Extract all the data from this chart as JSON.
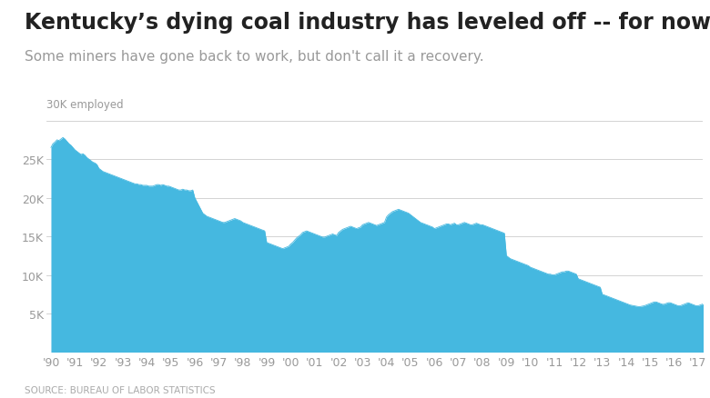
{
  "title": "Kentucky’s dying coal industry has leveled off -- for now",
  "subtitle": "Some miners have gone back to work, but don't call it a recovery.",
  "ylabel_text": "30K employed",
  "source": "SOURCE: BUREAU OF LABOR STATISTICS",
  "fill_color": "#45b8e0",
  "line_color": "#45b8e0",
  "background_color": "#ffffff",
  "grid_color": "#cccccc",
  "yticks": [
    5000,
    10000,
    15000,
    20000,
    25000
  ],
  "ytick_labels": [
    "5K",
    "10K",
    "15K",
    "20K",
    "25K"
  ],
  "ylim": [
    0,
    31000
  ],
  "title_fontsize": 17,
  "subtitle_fontsize": 11,
  "tick_fontsize": 9,
  "years": [
    "'90",
    "'91",
    "'92",
    "'93",
    "'94",
    "'95",
    "'96",
    "'97",
    "'98",
    "'99",
    "'00",
    "'01",
    "'02",
    "'03",
    "'04",
    "'05",
    "'06",
    "'07",
    "'08",
    "'09",
    "'10",
    "'11",
    "'12",
    "'13",
    "'14",
    "'15",
    "'16",
    "'17"
  ],
  "monthly_values": [
    26500,
    27000,
    27200,
    27500,
    27400,
    27600,
    27800,
    27600,
    27300,
    27000,
    26800,
    26500,
    26200,
    26000,
    25800,
    25600,
    25700,
    25500,
    25200,
    25000,
    24800,
    24600,
    24500,
    24300,
    23800,
    23600,
    23400,
    23300,
    23200,
    23100,
    23000,
    22900,
    22800,
    22700,
    22600,
    22500,
    22400,
    22300,
    22200,
    22100,
    22000,
    21900,
    21800,
    21800,
    21700,
    21700,
    21600,
    21600,
    21600,
    21500,
    21500,
    21500,
    21600,
    21700,
    21700,
    21600,
    21700,
    21600,
    21500,
    21500,
    21400,
    21300,
    21200,
    21100,
    21000,
    21000,
    21100,
    21000,
    21000,
    20900,
    20900,
    21000,
    20000,
    19500,
    19000,
    18500,
    18000,
    17800,
    17600,
    17500,
    17400,
    17300,
    17200,
    17100,
    17000,
    16900,
    16800,
    16800,
    16900,
    17000,
    17100,
    17200,
    17300,
    17200,
    17100,
    17000,
    16800,
    16700,
    16600,
    16500,
    16400,
    16300,
    16200,
    16100,
    16000,
    15900,
    15800,
    15700,
    14200,
    14100,
    14000,
    13900,
    13800,
    13700,
    13600,
    13500,
    13400,
    13500,
    13600,
    13700,
    14000,
    14200,
    14500,
    14800,
    15000,
    15200,
    15500,
    15600,
    15700,
    15600,
    15500,
    15400,
    15300,
    15200,
    15100,
    15000,
    14900,
    14900,
    15000,
    15100,
    15200,
    15300,
    15200,
    15100,
    15500,
    15700,
    15900,
    16000,
    16100,
    16200,
    16300,
    16200,
    16100,
    16000,
    16100,
    16200,
    16500,
    16600,
    16700,
    16800,
    16700,
    16600,
    16500,
    16400,
    16500,
    16600,
    16700,
    16800,
    17500,
    17800,
    18000,
    18200,
    18300,
    18400,
    18500,
    18400,
    18300,
    18200,
    18100,
    18000,
    17800,
    17600,
    17400,
    17200,
    17000,
    16800,
    16700,
    16600,
    16500,
    16400,
    16300,
    16200,
    16000,
    16100,
    16200,
    16300,
    16400,
    16500,
    16600,
    16600,
    16500,
    16600,
    16700,
    16500,
    16500,
    16600,
    16700,
    16800,
    16700,
    16600,
    16500,
    16500,
    16600,
    16700,
    16600,
    16500,
    16500,
    16400,
    16300,
    16200,
    16100,
    16000,
    15900,
    15800,
    15700,
    15600,
    15500,
    15400,
    12500,
    12300,
    12100,
    12000,
    11900,
    11800,
    11700,
    11600,
    11500,
    11400,
    11300,
    11200,
    11000,
    10900,
    10800,
    10700,
    10600,
    10500,
    10400,
    10300,
    10200,
    10100,
    10100,
    10000,
    10000,
    10100,
    10200,
    10300,
    10400,
    10400,
    10500,
    10500,
    10400,
    10300,
    10200,
    10100,
    9500,
    9400,
    9300,
    9200,
    9100,
    9000,
    8900,
    8800,
    8700,
    8600,
    8500,
    8400,
    7500,
    7400,
    7300,
    7200,
    7100,
    7000,
    6900,
    6800,
    6700,
    6600,
    6500,
    6400,
    6300,
    6200,
    6100,
    6050,
    6000,
    5950,
    5900,
    5900,
    5950,
    6000,
    6100,
    6200,
    6300,
    6400,
    6500,
    6500,
    6400,
    6300,
    6200,
    6200,
    6300,
    6400,
    6400,
    6300,
    6200,
    6100,
    6000,
    6000,
    6100,
    6200,
    6300,
    6400,
    6300,
    6200,
    6100,
    6000,
    6000,
    6100,
    6200,
    6300,
    6400,
    6400,
    6400,
    6400,
    6400,
    6400,
    6400,
    6400
  ]
}
